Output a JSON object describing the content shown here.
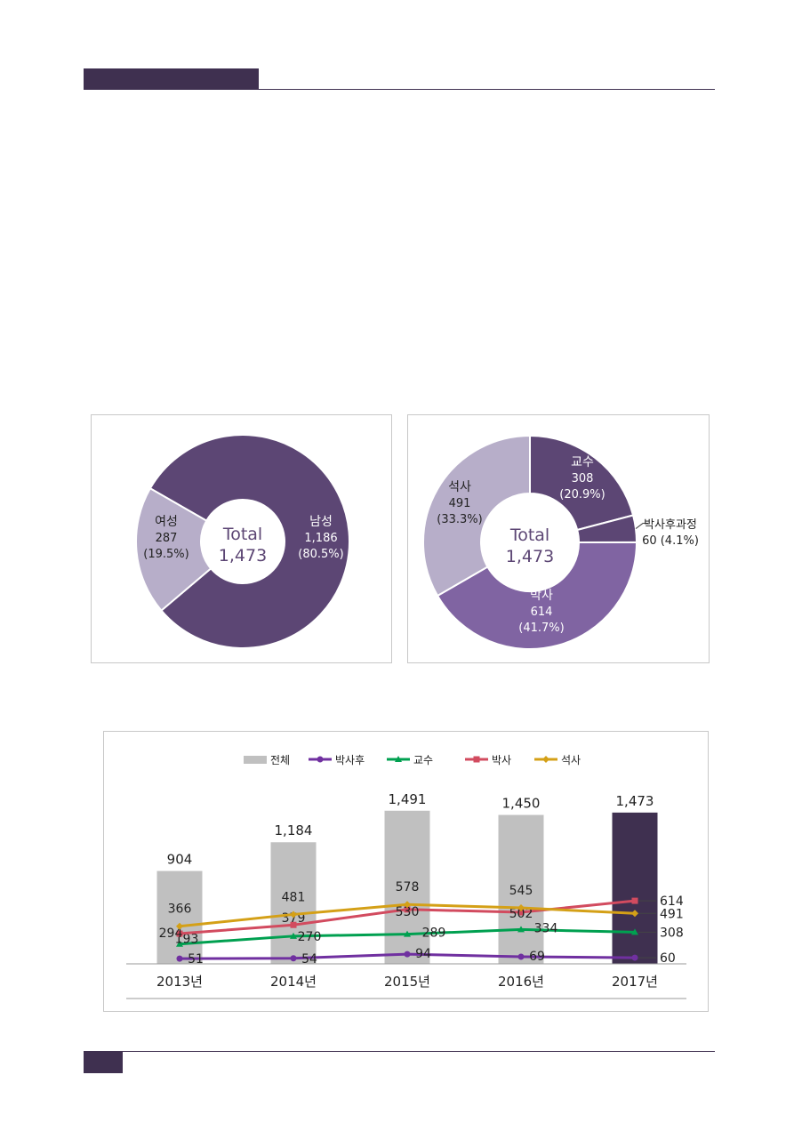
{
  "colors": {
    "header": "#3f3050",
    "male": "#5c4674",
    "female": "#b7aec9",
    "professor": "#5c4674",
    "postdoc": "#5c4674",
    "phd": "#8064a2",
    "masters": "#b7aec9",
    "bar_gray": "#c0c0c0",
    "bar_highlight": "#3f3050",
    "line_postdoc": "#7030a0",
    "line_professor": "#00a050",
    "line_phd": "#d24b5f",
    "line_masters": "#d4a017"
  },
  "chart_data": [
    {
      "type": "pie",
      "center_label": "Total",
      "center_value": "1,473",
      "slices": [
        {
          "name": "남성",
          "value": 1186,
          "value_label": "1,186",
          "percent_label": "(80.5%)"
        },
        {
          "name": "여성",
          "value": 287,
          "value_label": "287",
          "percent_label": "(19.5%)"
        }
      ]
    },
    {
      "type": "pie",
      "center_label": "Total",
      "center_value": "1,473",
      "slices": [
        {
          "name": "교수",
          "value": 308,
          "value_label": "308",
          "percent_label": "(20.9%)"
        },
        {
          "name": "박사후과정",
          "value": 60,
          "value_label": "60 (4.1%)",
          "percent_label": ""
        },
        {
          "name": "박사",
          "value": 614,
          "value_label": "614",
          "percent_label": "(41.7%)"
        },
        {
          "name": "석사",
          "value": 491,
          "value_label": "491",
          "percent_label": "(33.3%)"
        }
      ]
    },
    {
      "type": "bar",
      "legend_position": "top",
      "categories": [
        "2013년",
        "2014년",
        "2015년",
        "2016년",
        "2017년"
      ],
      "bars": {
        "name": "전체",
        "values": [
          904,
          1184,
          1491,
          1450,
          1473
        ],
        "labels": [
          "904",
          "1,184",
          "1,491",
          "1,450",
          "1,473"
        ],
        "highlight_index": 4
      },
      "series": [
        {
          "name": "박사후",
          "values": [
            51,
            54,
            94,
            69,
            60
          ]
        },
        {
          "name": "교수",
          "values": [
            193,
            270,
            289,
            334,
            308
          ]
        },
        {
          "name": "박사",
          "values": [
            294,
            379,
            530,
            502,
            614
          ]
        },
        {
          "name": "석사",
          "values": [
            366,
            481,
            578,
            545,
            491
          ]
        }
      ],
      "ylim": [
        0,
        1700
      ]
    }
  ]
}
